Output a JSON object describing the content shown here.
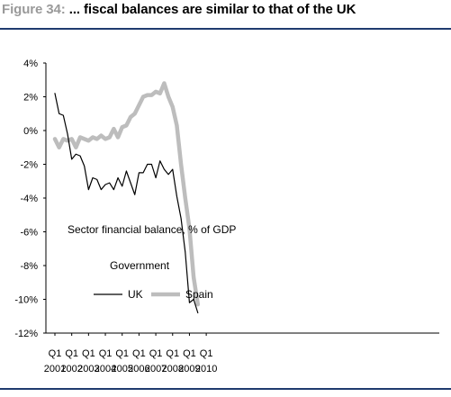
{
  "figure": {
    "label": "Figure 34:",
    "title": "... fiscal balances are similar to that of the UK"
  },
  "chart_data": {
    "type": "line",
    "title": "... fiscal balances are similar to that of the UK",
    "ylabel": "",
    "xlabel": "",
    "y_unit": "%",
    "ylim": [
      -12,
      4
    ],
    "yticks": [
      4,
      2,
      0,
      -2,
      -4,
      -6,
      -8,
      -10,
      -12
    ],
    "ytick_labels": [
      "4%",
      "2%",
      "0%",
      "-2%",
      "-4%",
      "-6%",
      "-8%",
      "-10%",
      "-12%"
    ],
    "x_start": "2001 Q1",
    "xticks": [
      {
        "quarter": "Q1",
        "year": "2001"
      },
      {
        "quarter": "Q1",
        "year": "2002"
      },
      {
        "quarter": "Q1",
        "year": "2003"
      },
      {
        "quarter": "Q1",
        "year": "2004"
      },
      {
        "quarter": "Q1",
        "year": "2005"
      },
      {
        "quarter": "Q1",
        "year": "2006"
      },
      {
        "quarter": "Q1",
        "year": "2007"
      },
      {
        "quarter": "Q1",
        "year": "2008"
      },
      {
        "quarter": "Q1",
        "year": "2009"
      },
      {
        "quarter": "Q1",
        "year": "2010"
      }
    ],
    "grid": false,
    "annotations": [
      "Sector financial balance, % of GDP",
      "Government"
    ],
    "legend_position": "bottom-left",
    "series": [
      {
        "name": "UK",
        "color": "#000000",
        "values": [
          2.2,
          1.0,
          0.9,
          -0.2,
          -1.7,
          -1.4,
          -1.5,
          -2.1,
          -3.5,
          -2.8,
          -2.9,
          -3.5,
          -3.2,
          -3.1,
          -3.5,
          -2.8,
          -3.3,
          -2.4,
          -3.1,
          -3.8,
          -2.5,
          -2.5,
          -2.0,
          -2.0,
          -2.8,
          -1.8,
          -2.3,
          -2.6,
          -2.3,
          -3.9,
          -5.2,
          -7.2,
          -10.2,
          -10.0,
          -10.8
        ]
      },
      {
        "name": "Spain",
        "color": "#bdbdbd",
        "values": [
          -0.5,
          -1.0,
          -0.5,
          -0.6,
          -0.5,
          -1.0,
          -0.4,
          -0.5,
          -0.6,
          -0.4,
          -0.5,
          -0.3,
          -0.5,
          -0.4,
          0.1,
          -0.4,
          0.2,
          0.3,
          0.8,
          1.0,
          1.5,
          2.0,
          2.1,
          2.1,
          2.3,
          2.2,
          2.8,
          2.0,
          1.4,
          0.3,
          -2.0,
          -4.0,
          -5.8,
          -8.7,
          -10.3
        ]
      }
    ]
  }
}
